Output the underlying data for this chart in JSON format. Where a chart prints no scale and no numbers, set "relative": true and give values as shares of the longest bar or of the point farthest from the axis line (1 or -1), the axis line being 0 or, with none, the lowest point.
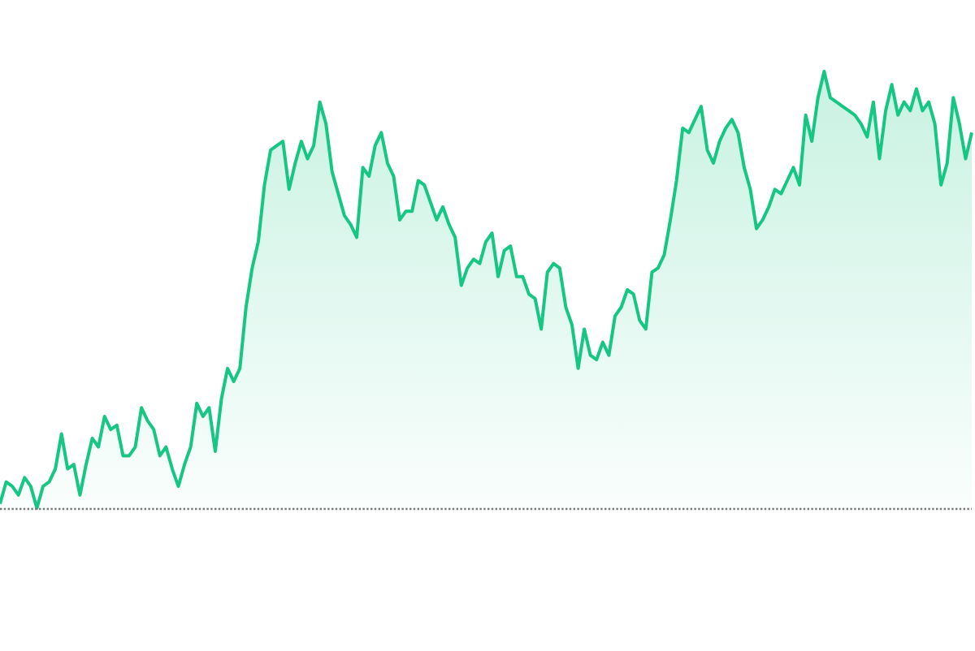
{
  "chart_data": {
    "type": "area",
    "relative": true,
    "line_style": "solid",
    "categories": [
      null,
      null,
      null,
      null,
      null,
      null,
      null,
      null,
      null,
      null,
      null,
      null,
      null,
      null,
      null,
      null,
      null,
      null,
      null,
      null,
      null,
      null,
      null,
      null,
      null,
      null,
      null,
      null,
      null,
      null,
      null,
      null,
      null,
      null,
      null,
      null,
      null,
      null,
      null,
      null,
      null,
      null,
      null,
      null,
      null,
      null,
      null,
      null,
      null,
      null,
      null,
      null,
      null,
      null,
      null,
      null,
      null,
      null,
      null,
      null,
      null,
      null,
      null,
      null,
      null,
      null,
      null,
      null,
      null,
      null,
      null,
      null,
      null,
      null,
      null,
      null,
      null,
      null,
      null,
      null,
      null,
      null,
      null,
      null,
      null,
      null,
      null,
      null,
      null,
      null,
      null,
      null,
      null,
      null,
      null,
      null,
      null,
      null,
      null,
      null,
      null,
      null,
      null,
      null,
      null,
      null,
      null,
      null,
      null,
      null,
      null,
      null,
      null,
      null,
      null,
      null,
      null,
      null,
      null,
      null,
      null,
      null,
      null,
      null,
      null,
      null,
      null,
      null,
      null,
      null,
      null,
      null,
      null,
      null,
      null,
      null,
      null,
      null,
      null,
      null,
      null,
      null,
      null,
      null,
      null,
      null,
      null,
      null,
      null,
      null,
      null,
      null,
      null,
      null,
      null,
      null,
      null,
      null,
      null
    ],
    "series": [
      {
        "color": "#16c784",
        "values": [
          0.01,
          0.06,
          0.05,
          0.03,
          0.07,
          0.05,
          0,
          0.05,
          0.06,
          0.09,
          0.17,
          0.09,
          0.1,
          0.03,
          0.1,
          0.16,
          0.14,
          0.21,
          0.18,
          0.19,
          0.12,
          0.12,
          0.14,
          0.23,
          0.2,
          0.18,
          0.12,
          0.14,
          0.09,
          0.05,
          0.1,
          0.14,
          0.24,
          0.21,
          0.23,
          0.13,
          0.25,
          0.32,
          0.29,
          0.32,
          0.46,
          0.55,
          0.61,
          0.74,
          0.82,
          0.83,
          0.84,
          0.73,
          0.79,
          0.84,
          0.8,
          0.83,
          0.93,
          0.88,
          0.77,
          0.72,
          0.67,
          0.65,
          0.62,
          0.78,
          0.76,
          0.83,
          0.86,
          0.79,
          0.76,
          0.66,
          0.68,
          0.68,
          0.75,
          0.74,
          0.7,
          0.66,
          0.69,
          0.65,
          0.62,
          0.51,
          0.55,
          0.57,
          0.56,
          0.61,
          0.63,
          0.53,
          0.59,
          0.6,
          0.53,
          0.53,
          0.49,
          0.48,
          0.41,
          0.54,
          0.56,
          0.55,
          0.46,
          0.42,
          0.32,
          0.41,
          0.35,
          0.34,
          0.38,
          0.35,
          0.44,
          0.46,
          0.5,
          0.49,
          0.43,
          0.41,
          0.54,
          0.55,
          0.58,
          0.66,
          0.75,
          0.87,
          0.86,
          0.89,
          0.92,
          0.82,
          0.79,
          0.84,
          0.87,
          0.89,
          0.86,
          0.78,
          0.73,
          0.64,
          0.66,
          0.69,
          0.73,
          0.72,
          0.75,
          0.78,
          0.74,
          0.9,
          0.84,
          0.94,
          1,
          0.94,
          0.93,
          0.92,
          0.91,
          0.9,
          0.88,
          0.85,
          0.93,
          0.8,
          0.91,
          0.97,
          0.9,
          0.93,
          0.91,
          0.96,
          0.91,
          0.93,
          0.88,
          0.74,
          0.79,
          0.94,
          0.88,
          0.8,
          0.86
        ]
      }
    ],
    "ref_lines": [
      {
        "axis": "y",
        "value": 0,
        "color": "#777777",
        "line_style": "dotted"
      }
    ]
  }
}
